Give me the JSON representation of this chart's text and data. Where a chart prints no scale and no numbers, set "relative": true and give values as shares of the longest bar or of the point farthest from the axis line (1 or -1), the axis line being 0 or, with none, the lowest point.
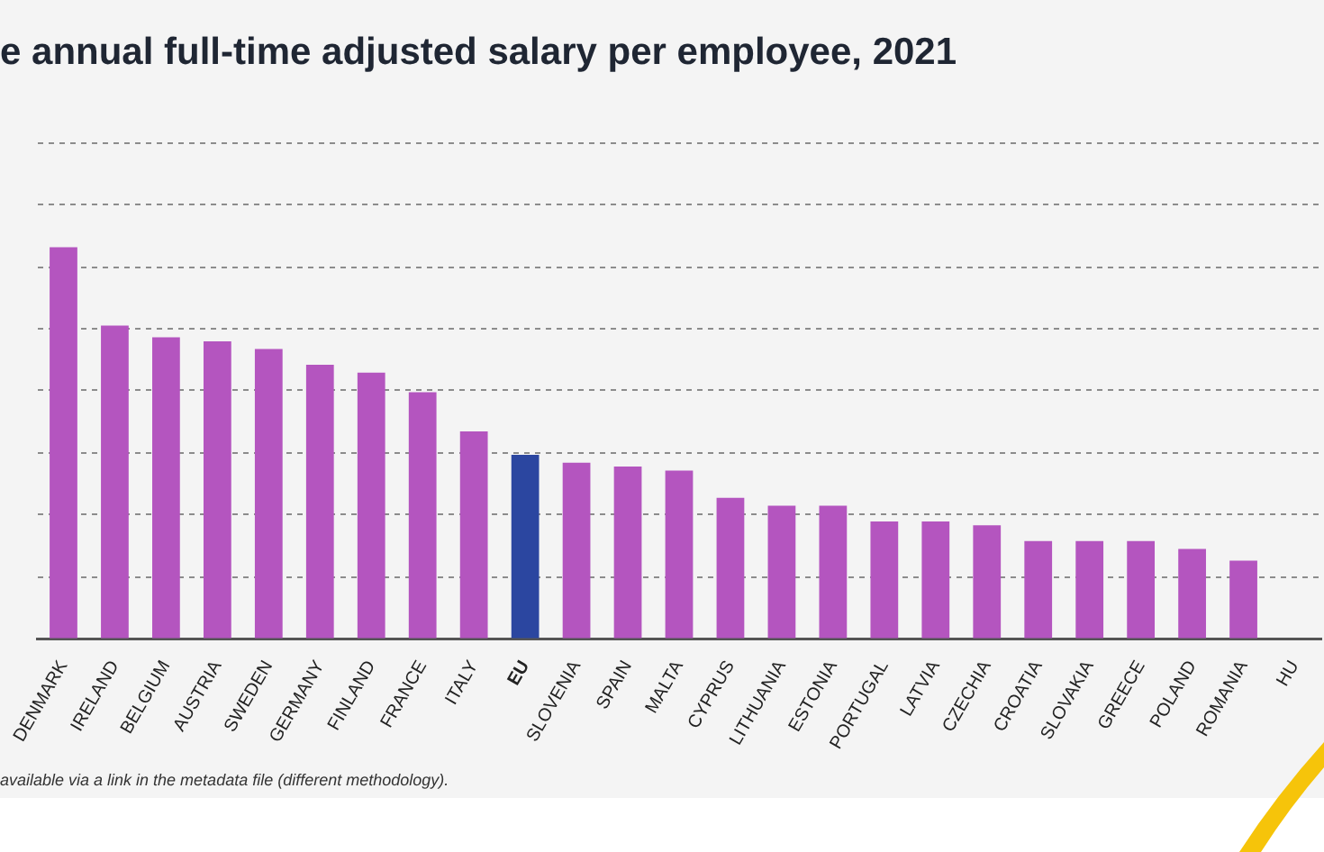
{
  "chart_data": {
    "type": "bar",
    "title": "e annual full-time adjusted salary per employee, 2021",
    "annotations": [
      "available via a link in the metadata file (different methodology)."
    ],
    "categories": [
      "DENMARK",
      "IRELAND",
      "BELGIUM",
      "AUSTRIA",
      "SWEDEN",
      "GERMANY",
      "FINLAND",
      "FRANCE",
      "ITALY",
      "EU",
      "SLOVENIA",
      "SPAIN",
      "MALTA",
      "CYPRUS",
      "LITHUANIA",
      "ESTONIA",
      "PORTUGAL",
      "LATVIA",
      "CZECHIA",
      "CROATIA",
      "SLOVAKIA",
      "GREECE",
      "POLAND",
      "ROMANIA",
      "HU"
    ],
    "values": [
      1,
      0.8,
      0.77,
      0.76,
      0.74,
      0.7,
      0.68,
      0.63,
      0.53,
      0.47,
      0.45,
      0.44,
      0.43,
      0.36,
      0.34,
      0.34,
      0.3,
      0.3,
      0.29,
      0.25,
      0.25,
      0.25,
      0.23,
      0.2,
      null
    ],
    "colors": [
      "#b455bf",
      "#b455bf",
      "#b455bf",
      "#b455bf",
      "#b455bf",
      "#b455bf",
      "#b455bf",
      "#b455bf",
      "#b455bf",
      "#2b46a0",
      "#b455bf",
      "#b455bf",
      "#b455bf",
      "#b455bf",
      "#b455bf",
      "#b455bf",
      "#b455bf",
      "#b455bf",
      "#b455bf",
      "#b455bf",
      "#b455bf",
      "#b455bf",
      "#b455bf",
      "#b455bf",
      "#b455bf"
    ],
    "relative": true,
    "grid": "y"
  }
}
